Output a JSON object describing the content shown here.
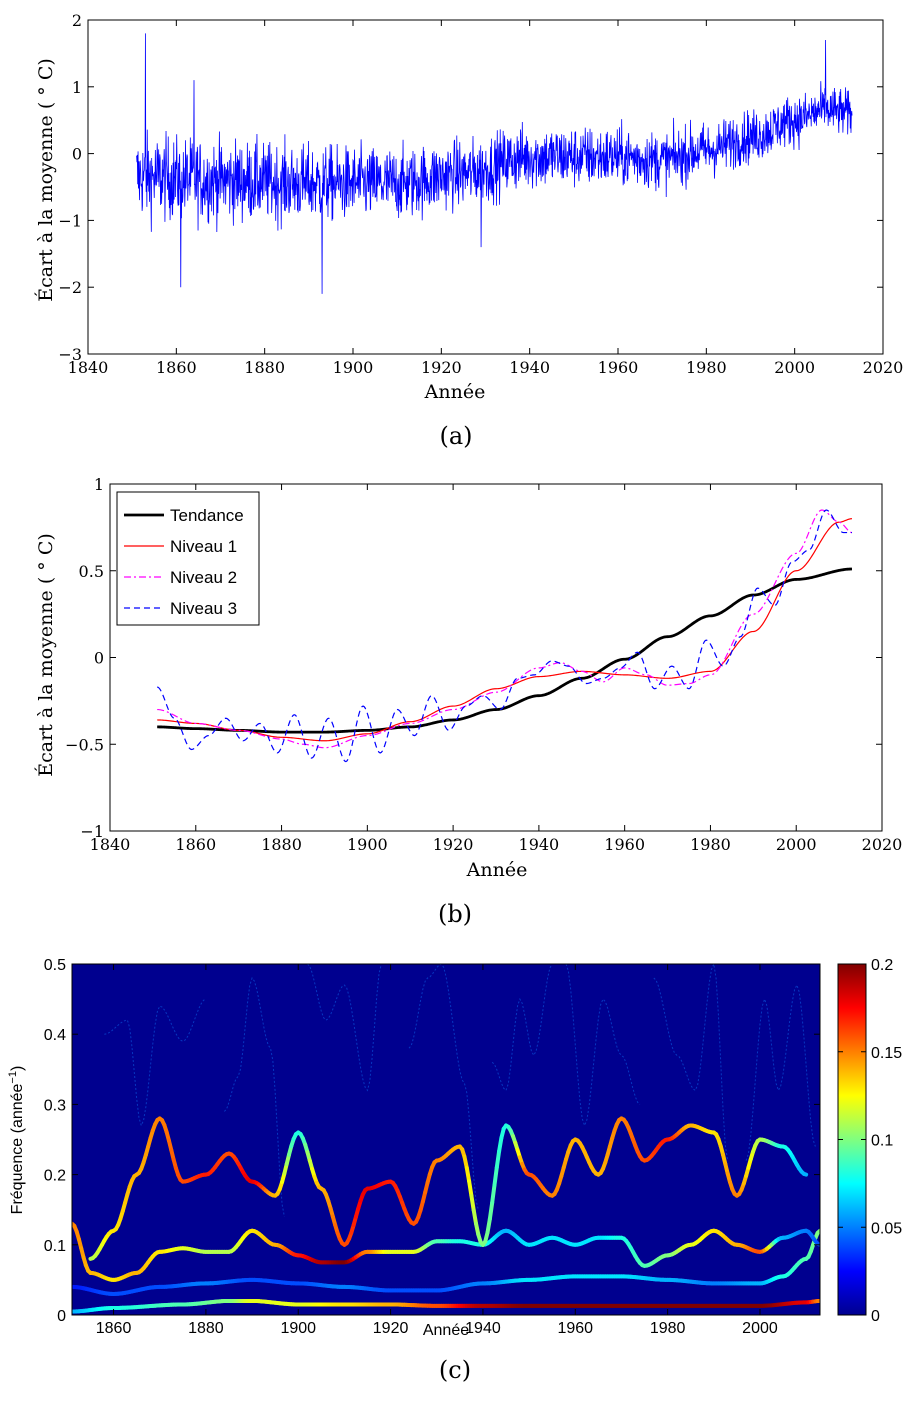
{
  "panels": {
    "a": {
      "caption": "(a)"
    },
    "b": {
      "caption": "(b)"
    },
    "c": {
      "caption": "(c)"
    }
  },
  "chart_data": [
    {
      "id": "a",
      "type": "line",
      "xlabel": "Année",
      "ylabel": "Écart à la moyenne ( ° C)",
      "xlim": [
        1840,
        2020
      ],
      "ylim": [
        -3,
        2
      ],
      "xticks": [
        1840,
        1860,
        1880,
        1900,
        1920,
        1940,
        1960,
        1980,
        2000,
        2020
      ],
      "yticks": [
        -3,
        -2,
        -1,
        0,
        1,
        2
      ],
      "grid": false,
      "series": [
        {
          "color": "#0000ff",
          "sampling": "monthly, 1851–2013",
          "trend_anchor_years": [
            1851,
            1870,
            1890,
            1910,
            1925,
            1940,
            1950,
            1960,
            1970,
            1980,
            1990,
            2000,
            2007,
            2013
          ],
          "trend_anchor_values": [
            -0.35,
            -0.4,
            -0.45,
            -0.45,
            -0.3,
            -0.05,
            -0.05,
            -0.05,
            -0.1,
            0.05,
            0.25,
            0.5,
            0.65,
            0.6
          ],
          "noise_amplitude_start": 0.45,
          "noise_amplitude_end": 0.25,
          "notable_points": [
            {
              "x": 1853,
              "y": 1.8
            },
            {
              "x": 1864,
              "y": 1.1
            },
            {
              "x": 1861,
              "y": -2.0
            },
            {
              "x": 1893,
              "y": -2.1
            },
            {
              "x": 1929,
              "y": -1.4
            },
            {
              "x": 2007,
              "y": 1.7
            }
          ]
        }
      ]
    },
    {
      "id": "b",
      "type": "line",
      "xlabel": "Année",
      "ylabel": "Écart à la moyenne ( ° C)",
      "xlim": [
        1840,
        2020
      ],
      "ylim": [
        -1,
        1
      ],
      "xticks": [
        1840,
        1860,
        1880,
        1900,
        1920,
        1940,
        1960,
        1980,
        2000,
        2020
      ],
      "yticks": [
        -1,
        -0.5,
        0,
        0.5,
        1
      ],
      "yticklabels": [
        "−1",
        "−0.5",
        "0",
        "0.5",
        "1"
      ],
      "legend_position": "top-left",
      "grid": false,
      "series": [
        {
          "name": "Tendance",
          "color": "#000000",
          "style": "solid-thick",
          "x": [
            1851,
            1860,
            1870,
            1880,
            1890,
            1900,
            1910,
            1920,
            1930,
            1940,
            1950,
            1960,
            1970,
            1980,
            1990,
            2000,
            2013
          ],
          "y": [
            -0.4,
            -0.41,
            -0.42,
            -0.43,
            -0.43,
            -0.42,
            -0.4,
            -0.36,
            -0.3,
            -0.22,
            -0.12,
            -0.01,
            0.12,
            0.24,
            0.36,
            0.45,
            0.51
          ]
        },
        {
          "name": "Niveau 1",
          "color": "#ff0000",
          "style": "solid",
          "x": [
            1851,
            1860,
            1870,
            1880,
            1890,
            1900,
            1910,
            1920,
            1930,
            1940,
            1950,
            1960,
            1970,
            1980,
            1990,
            2000,
            2010,
            2013
          ],
          "y": [
            -0.36,
            -0.38,
            -0.42,
            -0.46,
            -0.48,
            -0.44,
            -0.37,
            -0.28,
            -0.18,
            -0.11,
            -0.08,
            -0.1,
            -0.12,
            -0.08,
            0.15,
            0.5,
            0.78,
            0.8
          ]
        },
        {
          "name": "Niveau 2",
          "color": "#ff00ff",
          "style": "dashdot",
          "x": [
            1851,
            1860,
            1870,
            1880,
            1885,
            1890,
            1900,
            1910,
            1920,
            1930,
            1940,
            1945,
            1950,
            1955,
            1960,
            1965,
            1970,
            1975,
            1980,
            1990,
            2000,
            2006,
            2010,
            2013
          ],
          "y": [
            -0.3,
            -0.38,
            -0.42,
            -0.47,
            -0.5,
            -0.52,
            -0.45,
            -0.38,
            -0.3,
            -0.2,
            -0.06,
            -0.03,
            -0.08,
            -0.14,
            -0.06,
            -0.1,
            -0.16,
            -0.15,
            -0.1,
            0.25,
            0.6,
            0.85,
            0.78,
            0.72
          ]
        },
        {
          "name": "Niveau 3",
          "color": "#0000ff",
          "style": "dashed",
          "x": [
            1851,
            1855,
            1859,
            1863,
            1867,
            1871,
            1875,
            1879,
            1883,
            1887,
            1891,
            1895,
            1899,
            1903,
            1907,
            1911,
            1915,
            1919,
            1923,
            1927,
            1931,
            1935,
            1939,
            1943,
            1947,
            1951,
            1955,
            1959,
            1963,
            1967,
            1971,
            1975,
            1979,
            1983,
            1987,
            1991,
            1995,
            1999,
            2003,
            2007,
            2011,
            2013
          ],
          "y": [
            -0.17,
            -0.35,
            -0.53,
            -0.45,
            -0.35,
            -0.48,
            -0.38,
            -0.55,
            -0.33,
            -0.58,
            -0.35,
            -0.6,
            -0.28,
            -0.55,
            -0.3,
            -0.45,
            -0.22,
            -0.42,
            -0.28,
            -0.22,
            -0.3,
            -0.12,
            -0.1,
            -0.02,
            -0.05,
            -0.15,
            -0.12,
            -0.06,
            0.03,
            -0.18,
            -0.05,
            -0.18,
            0.1,
            -0.05,
            0.12,
            0.4,
            0.3,
            0.55,
            0.62,
            0.85,
            0.72,
            0.72
          ]
        }
      ]
    },
    {
      "id": "c",
      "type": "heatmap",
      "xlabel": "Année",
      "ylabel": "Fréquence (année",
      "ylabel_sup": "−1",
      "ylabel_close": ")",
      "xlim": [
        1851,
        2013
      ],
      "ylim": [
        0,
        0.5
      ],
      "xticks": [
        1860,
        1880,
        1900,
        1920,
        1940,
        1960,
        1980,
        2000
      ],
      "yticks": [
        0,
        0.1,
        0.2,
        0.3,
        0.4,
        0.5
      ],
      "colorbar": {
        "min": 0,
        "max": 0.2,
        "ticks": [
          0,
          0.05,
          0.1,
          0.15,
          0.2
        ],
        "colormap": "jet"
      },
      "ridges": [
        {
          "x": [
            1851,
            1860,
            1875,
            1885,
            1890,
            1900,
            1910,
            1920,
            1930,
            1940,
            1950,
            1960,
            1970,
            1980,
            1990,
            2000,
            2010,
            2013
          ],
          "y": [
            0.005,
            0.01,
            0.015,
            0.02,
            0.02,
            0.015,
            0.015,
            0.015,
            0.013,
            0.013,
            0.013,
            0.013,
            0.013,
            0.013,
            0.013,
            0.013,
            0.018,
            0.02
          ],
          "intensity": [
            0.06,
            0.08,
            0.09,
            0.1,
            0.12,
            0.12,
            0.13,
            0.14,
            0.16,
            0.19,
            0.2,
            0.2,
            0.2,
            0.2,
            0.2,
            0.2,
            0.18,
            0.15
          ]
        },
        {
          "x": [
            1851,
            1860,
            1870,
            1880,
            1890,
            1900,
            1910,
            1920,
            1930,
            1940,
            1950,
            1960,
            1970,
            1980,
            1990,
            2000,
            2005,
            2010,
            2013
          ],
          "y": [
            0.04,
            0.03,
            0.04,
            0.045,
            0.05,
            0.045,
            0.04,
            0.035,
            0.035,
            0.045,
            0.05,
            0.055,
            0.055,
            0.05,
            0.045,
            0.045,
            0.055,
            0.08,
            0.12
          ],
          "intensity": [
            0.03,
            0.04,
            0.04,
            0.05,
            0.04,
            0.04,
            0.05,
            0.04,
            0.04,
            0.05,
            0.07,
            0.07,
            0.07,
            0.06,
            0.05,
            0.06,
            0.08,
            0.09,
            0.1
          ]
        },
        {
          "x": [
            1851,
            1855,
            1860,
            1865,
            1870,
            1875,
            1880,
            1885,
            1890,
            1895,
            1900,
            1905,
            1910,
            1915,
            1920,
            1925,
            1930,
            1935,
            1940,
            1945,
            1950,
            1955,
            1960,
            1965,
            1970,
            1975,
            1980,
            1985,
            1990,
            1995,
            2000,
            2005,
            2010,
            2013
          ],
          "y": [
            0.13,
            0.06,
            0.05,
            0.06,
            0.09,
            0.095,
            0.09,
            0.09,
            0.12,
            0.1,
            0.085,
            0.075,
            0.075,
            0.09,
            0.09,
            0.09,
            0.105,
            0.105,
            0.1,
            0.12,
            0.1,
            0.11,
            0.1,
            0.11,
            0.11,
            0.07,
            0.085,
            0.1,
            0.12,
            0.1,
            0.09,
            0.11,
            0.12,
            0.1
          ],
          "intensity": [
            0.15,
            0.14,
            0.13,
            0.14,
            0.13,
            0.12,
            0.11,
            0.11,
            0.13,
            0.14,
            0.17,
            0.19,
            0.2,
            0.15,
            0.12,
            0.12,
            0.09,
            0.08,
            0.08,
            0.06,
            0.07,
            0.07,
            0.07,
            0.07,
            0.08,
            0.09,
            0.1,
            0.12,
            0.13,
            0.14,
            0.16,
            0.06,
            0.05,
            0.04
          ]
        },
        {
          "x": [
            1855,
            1860,
            1865,
            1870,
            1875,
            1880,
            1885,
            1890,
            1895,
            1900,
            1905,
            1910,
            1915,
            1920,
            1925,
            1930,
            1935,
            1940,
            1945,
            1950,
            1955,
            1960,
            1965,
            1970,
            1975,
            1980,
            1985,
            1990,
            1995,
            2000,
            2005,
            2010
          ],
          "y": [
            0.08,
            0.12,
            0.2,
            0.28,
            0.19,
            0.2,
            0.23,
            0.19,
            0.17,
            0.26,
            0.18,
            0.1,
            0.18,
            0.19,
            0.13,
            0.22,
            0.24,
            0.1,
            0.27,
            0.2,
            0.17,
            0.25,
            0.2,
            0.28,
            0.22,
            0.25,
            0.27,
            0.26,
            0.17,
            0.25,
            0.24,
            0.2
          ],
          "intensity": [
            0.11,
            0.13,
            0.14,
            0.15,
            0.16,
            0.17,
            0.16,
            0.18,
            0.14,
            0.08,
            0.14,
            0.16,
            0.18,
            0.17,
            0.16,
            0.15,
            0.14,
            0.1,
            0.08,
            0.16,
            0.15,
            0.14,
            0.14,
            0.15,
            0.16,
            0.17,
            0.14,
            0.13,
            0.15,
            0.11,
            0.08,
            0.06
          ]
        }
      ],
      "faint_lines": [
        {
          "x": [
            1858,
            1863,
            1866,
            1870,
            1875,
            1880
          ],
          "y": [
            0.4,
            0.42,
            0.27,
            0.44,
            0.39,
            0.45
          ]
        },
        {
          "x": [
            1884,
            1887,
            1890,
            1894,
            1897
          ],
          "y": [
            0.29,
            0.34,
            0.48,
            0.38,
            0.14
          ]
        },
        {
          "x": [
            1902,
            1906,
            1910,
            1915,
            1918
          ],
          "y": [
            0.5,
            0.42,
            0.47,
            0.32,
            0.5
          ]
        },
        {
          "x": [
            1924,
            1928,
            1931,
            1936,
            1939
          ],
          "y": [
            0.38,
            0.48,
            0.5,
            0.33,
            0.15
          ]
        },
        {
          "x": [
            1942,
            1945,
            1948,
            1951,
            1955
          ],
          "y": [
            0.36,
            0.32,
            0.45,
            0.37,
            0.5
          ]
        },
        {
          "x": [
            1958,
            1962,
            1966,
            1970,
            1974
          ],
          "y": [
            0.5,
            0.27,
            0.45,
            0.37,
            0.3
          ]
        },
        {
          "x": [
            1977,
            1982,
            1986,
            1990,
            1993
          ],
          "y": [
            0.48,
            0.37,
            0.32,
            0.5,
            0.22
          ]
        },
        {
          "x": [
            1997,
            2001,
            2004,
            2008,
            2012
          ],
          "y": [
            0.22,
            0.45,
            0.32,
            0.47,
            0.24
          ]
        }
      ]
    }
  ]
}
